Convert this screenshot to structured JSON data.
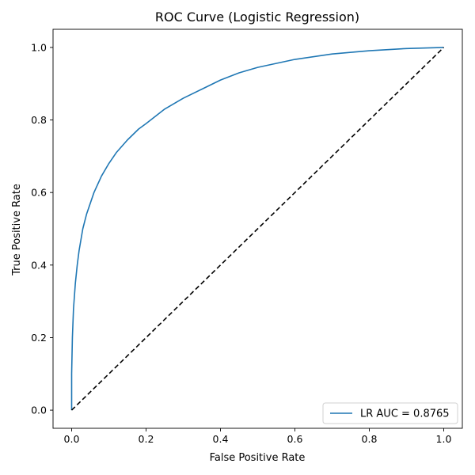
{
  "chart_data": {
    "type": "line",
    "title": "ROC Curve (Logistic Regression)",
    "xlabel": "False Positive Rate",
    "ylabel": "True Positive Rate",
    "xlim": [
      -0.05,
      1.05
    ],
    "ylim": [
      -0.05,
      1.05
    ],
    "x_ticks": [
      "0.0",
      "0.2",
      "0.4",
      "0.6",
      "0.8",
      "1.0"
    ],
    "y_ticks": [
      "0.0",
      "0.2",
      "0.4",
      "0.6",
      "0.8",
      "1.0"
    ],
    "grid": false,
    "legend_position": "lower-right",
    "series": [
      {
        "name": "LR AUC = 0.8765",
        "color": "#1f77b4",
        "style": "solid",
        "x": [
          0.0,
          0.0,
          0.002,
          0.005,
          0.01,
          0.015,
          0.02,
          0.03,
          0.04,
          0.05,
          0.06,
          0.08,
          0.1,
          0.12,
          0.15,
          0.18,
          0.2,
          0.25,
          0.3,
          0.35,
          0.4,
          0.45,
          0.5,
          0.6,
          0.7,
          0.8,
          0.9,
          1.0
        ],
        "y": [
          0.0,
          0.1,
          0.2,
          0.28,
          0.35,
          0.4,
          0.44,
          0.5,
          0.54,
          0.57,
          0.6,
          0.645,
          0.68,
          0.71,
          0.745,
          0.775,
          0.79,
          0.83,
          0.86,
          0.885,
          0.91,
          0.93,
          0.945,
          0.967,
          0.982,
          0.991,
          0.997,
          1.0
        ]
      },
      {
        "name": "",
        "color": "#000000",
        "style": "dashed",
        "x": [
          0.0,
          1.0
        ],
        "y": [
          0.0,
          1.0
        ]
      }
    ]
  }
}
